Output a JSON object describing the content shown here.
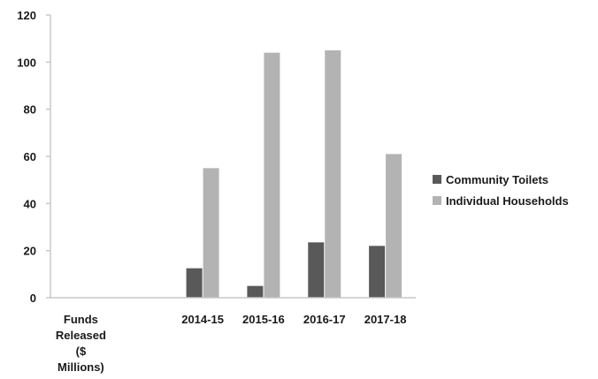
{
  "chart_data": {
    "type": "bar",
    "categories": [
      "Funds Released ($ Millions)",
      "",
      "2014-15",
      "2015-16",
      "2016-17",
      "2017-18"
    ],
    "series": [
      {
        "name": "Community Toilets",
        "values": [
          null,
          null,
          12.5,
          5,
          23.5,
          22
        ],
        "color": "#595959"
      },
      {
        "name": "Individual Households",
        "values": [
          null,
          null,
          55,
          104,
          105,
          61
        ],
        "color": "#b3b3b3"
      }
    ],
    "ylim": [
      0,
      120
    ],
    "yticks": [
      0,
      20,
      40,
      60,
      80,
      100,
      120
    ],
    "grid": false,
    "legend": "right"
  }
}
